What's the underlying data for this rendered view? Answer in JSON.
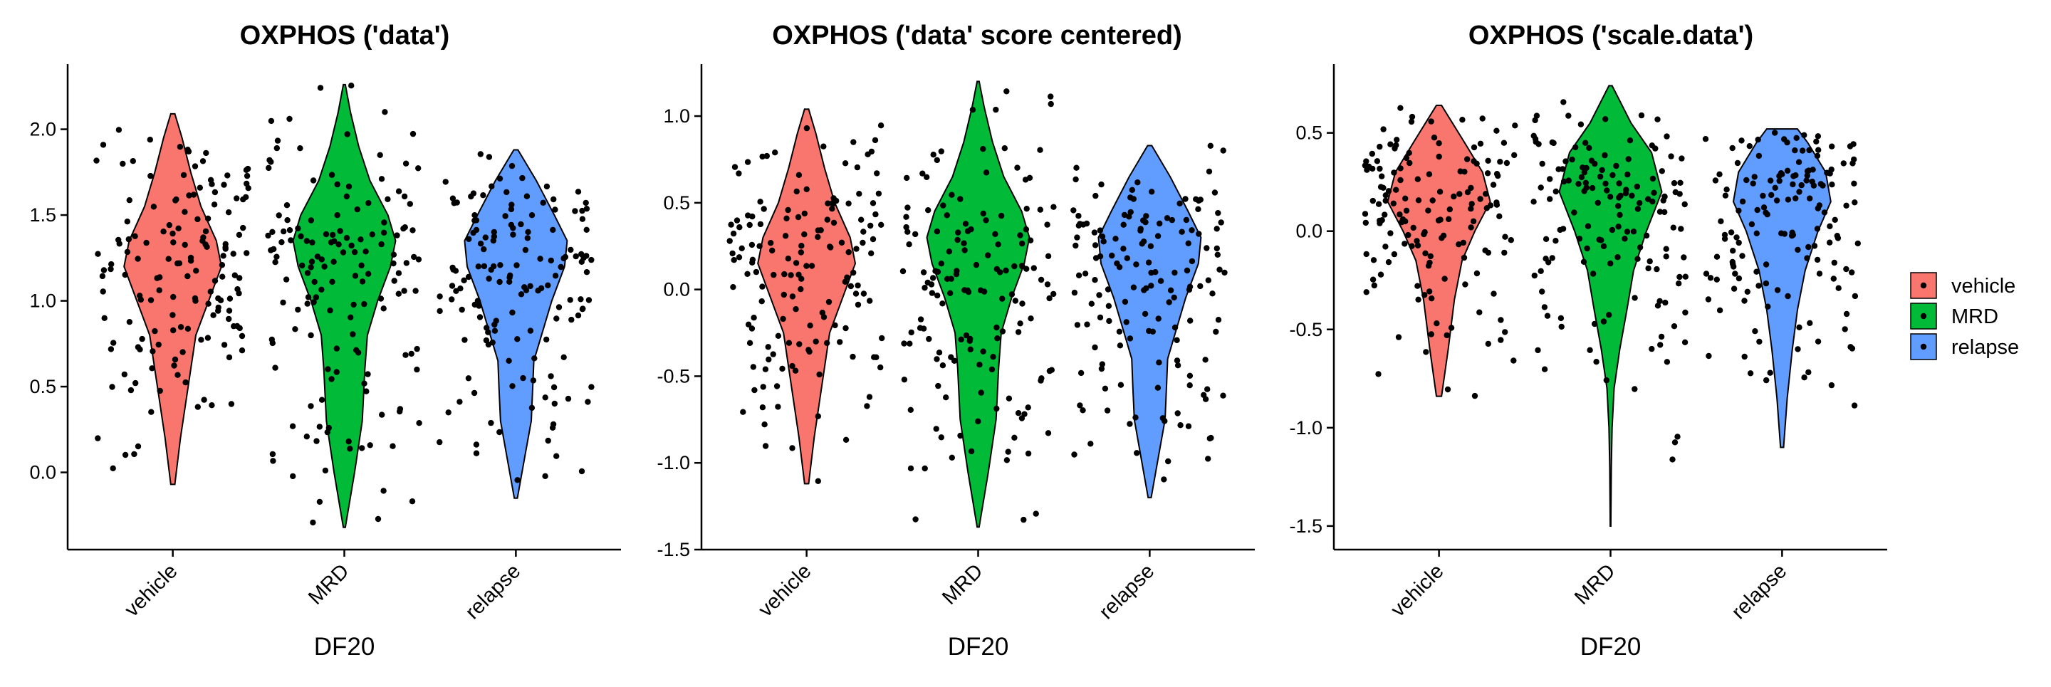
{
  "legend": {
    "entries": [
      {
        "label": "vehicle",
        "color": "#F8766D"
      },
      {
        "label": "MRD",
        "color": "#00BA38"
      },
      {
        "label": "relapse",
        "color": "#619CFF"
      }
    ]
  },
  "chart_data": [
    {
      "type": "violin",
      "title": "OXPHOS ('data')",
      "xlabel": "DF20",
      "ylabel": "",
      "categories": [
        "vehicle",
        "MRD",
        "relapse"
      ],
      "yticks": [
        0.0,
        0.5,
        1.0,
        1.5,
        2.0
      ],
      "ytick_labels": [
        "0.0",
        "0.5",
        "1.0",
        "1.5",
        "2.0"
      ],
      "ylim": [
        -0.45,
        2.38
      ],
      "series": [
        {
          "name": "vehicle",
          "min": -0.07,
          "max": 2.09,
          "density": [
            [
              -0.07,
              0.04
            ],
            [
              0.2,
              0.15
            ],
            [
              0.5,
              0.3
            ],
            [
              0.8,
              0.45
            ],
            [
              1.0,
              0.7
            ],
            [
              1.2,
              0.95
            ],
            [
              1.35,
              0.85
            ],
            [
              1.55,
              0.55
            ],
            [
              1.75,
              0.35
            ],
            [
              1.95,
              0.18
            ],
            [
              2.09,
              0.04
            ]
          ]
        },
        {
          "name": "MRD",
          "min": -0.32,
          "max": 2.26,
          "density": [
            [
              -0.32,
              0.02
            ],
            [
              0.0,
              0.2
            ],
            [
              0.3,
              0.35
            ],
            [
              0.6,
              0.4
            ],
            [
              0.8,
              0.45
            ],
            [
              1.0,
              0.65
            ],
            [
              1.2,
              0.9
            ],
            [
              1.35,
              1.0
            ],
            [
              1.5,
              0.85
            ],
            [
              1.7,
              0.5
            ],
            [
              1.9,
              0.28
            ],
            [
              2.1,
              0.12
            ],
            [
              2.26,
              0.02
            ]
          ]
        },
        {
          "name": "relapse",
          "min": -0.15,
          "max": 1.88,
          "density": [
            [
              -0.15,
              0.03
            ],
            [
              0.1,
              0.18
            ],
            [
              0.3,
              0.3
            ],
            [
              0.5,
              0.33
            ],
            [
              0.65,
              0.35
            ],
            [
              0.8,
              0.5
            ],
            [
              1.0,
              0.7
            ],
            [
              1.2,
              0.95
            ],
            [
              1.35,
              1.0
            ],
            [
              1.5,
              0.75
            ],
            [
              1.7,
              0.4
            ],
            [
              1.88,
              0.04
            ]
          ]
        }
      ]
    },
    {
      "type": "violin",
      "title": "OXPHOS ('data' score centered)",
      "xlabel": "DF20",
      "ylabel": "",
      "categories": [
        "vehicle",
        "MRD",
        "relapse"
      ],
      "yticks": [
        -1.5,
        -1.0,
        -0.5,
        0.0,
        0.5,
        1.0
      ],
      "ytick_labels": [
        "-1.5",
        "-1.0",
        "-0.5",
        "0.0",
        "0.5",
        "1.0"
      ],
      "ylim": [
        -1.5,
        1.3
      ],
      "series": [
        {
          "name": "vehicle",
          "min": -1.12,
          "max": 1.04,
          "density": [
            [
              -1.12,
              0.04
            ],
            [
              -0.85,
              0.15
            ],
            [
              -0.55,
              0.3
            ],
            [
              -0.25,
              0.45
            ],
            [
              -0.05,
              0.7
            ],
            [
              0.15,
              0.95
            ],
            [
              0.3,
              0.85
            ],
            [
              0.5,
              0.55
            ],
            [
              0.7,
              0.35
            ],
            [
              0.9,
              0.18
            ],
            [
              1.04,
              0.04
            ]
          ]
        },
        {
          "name": "MRD",
          "min": -1.37,
          "max": 1.2,
          "density": [
            [
              -1.37,
              0.02
            ],
            [
              -1.05,
              0.2
            ],
            [
              -0.75,
              0.35
            ],
            [
              -0.45,
              0.4
            ],
            [
              -0.25,
              0.45
            ],
            [
              -0.05,
              0.65
            ],
            [
              0.15,
              0.9
            ],
            [
              0.3,
              1.0
            ],
            [
              0.45,
              0.85
            ],
            [
              0.65,
              0.5
            ],
            [
              0.85,
              0.28
            ],
            [
              1.05,
              0.12
            ],
            [
              1.2,
              0.02
            ]
          ]
        },
        {
          "name": "relapse",
          "min": -1.2,
          "max": 0.83,
          "density": [
            [
              -1.2,
              0.03
            ],
            [
              -0.95,
              0.18
            ],
            [
              -0.75,
              0.3
            ],
            [
              -0.55,
              0.33
            ],
            [
              -0.4,
              0.35
            ],
            [
              -0.25,
              0.5
            ],
            [
              -0.05,
              0.7
            ],
            [
              0.15,
              0.95
            ],
            [
              0.3,
              1.0
            ],
            [
              0.45,
              0.75
            ],
            [
              0.65,
              0.4
            ],
            [
              0.83,
              0.04
            ]
          ]
        }
      ]
    },
    {
      "type": "violin",
      "title": "OXPHOS ('scale.data')",
      "xlabel": "DF20",
      "ylabel": "",
      "categories": [
        "vehicle",
        "MRD",
        "relapse"
      ],
      "yticks": [
        -1.5,
        -1.0,
        -0.5,
        0.0,
        0.5
      ],
      "ytick_labels": [
        "-1.5",
        "-1.0",
        "-0.5",
        "0.0",
        "0.5"
      ],
      "ylim": [
        -1.62,
        0.85
      ],
      "series": [
        {
          "name": "vehicle",
          "min": -0.84,
          "max": 0.64,
          "density": [
            [
              -0.84,
              0.05
            ],
            [
              -0.6,
              0.18
            ],
            [
              -0.35,
              0.3
            ],
            [
              -0.15,
              0.45
            ],
            [
              0.0,
              0.7
            ],
            [
              0.15,
              1.0
            ],
            [
              0.3,
              0.85
            ],
            [
              0.45,
              0.5
            ],
            [
              0.64,
              0.05
            ]
          ]
        },
        {
          "name": "MRD",
          "min": -1.5,
          "max": 0.74,
          "density": [
            [
              -1.5,
              0.005
            ],
            [
              -1.2,
              0.015
            ],
            [
              -1.0,
              0.03
            ],
            [
              -0.8,
              0.07
            ],
            [
              -0.6,
              0.18
            ],
            [
              -0.4,
              0.32
            ],
            [
              -0.2,
              0.45
            ],
            [
              0.0,
              0.7
            ],
            [
              0.2,
              1.0
            ],
            [
              0.4,
              0.8
            ],
            [
              0.55,
              0.4
            ],
            [
              0.74,
              0.03
            ]
          ]
        },
        {
          "name": "relapse",
          "min": -1.1,
          "max": 0.52,
          "density": [
            [
              -1.1,
              0.03
            ],
            [
              -0.85,
              0.1
            ],
            [
              -0.6,
              0.2
            ],
            [
              -0.4,
              0.3
            ],
            [
              -0.2,
              0.45
            ],
            [
              0.0,
              0.7
            ],
            [
              0.15,
              0.95
            ],
            [
              0.3,
              0.85
            ],
            [
              0.45,
              0.5
            ],
            [
              0.52,
              0.3
            ]
          ]
        }
      ]
    }
  ]
}
